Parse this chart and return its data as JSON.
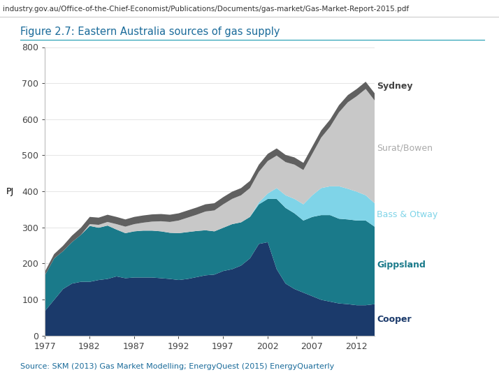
{
  "title": "Figure 2.7: Eastern Australia sources of gas supply",
  "source": "Source: SKM (2013) Gas Market Modelling; EnergyQuest (2015) EnergyQuarterly",
  "ylabel": "PJ",
  "url_text": "industry.gov.au/Office-of-the-Chief-Economist/Publications/Documents/gas-market/Gas-Market-Report-2015.pdf",
  "years": [
    1977,
    1978,
    1979,
    1980,
    1981,
    1982,
    1983,
    1984,
    1985,
    1986,
    1987,
    1988,
    1989,
    1990,
    1991,
    1992,
    1993,
    1994,
    1995,
    1996,
    1997,
    1998,
    1999,
    2000,
    2001,
    2002,
    2003,
    2004,
    2005,
    2006,
    2007,
    2008,
    2009,
    2010,
    2011,
    2012,
    2013,
    2014
  ],
  "cooper": [
    70,
    100,
    130,
    145,
    150,
    150,
    155,
    158,
    165,
    160,
    162,
    162,
    162,
    160,
    158,
    155,
    158,
    163,
    168,
    170,
    180,
    185,
    195,
    215,
    255,
    260,
    185,
    145,
    130,
    120,
    110,
    100,
    95,
    90,
    88,
    85,
    85,
    88
  ],
  "gippsland": [
    100,
    115,
    105,
    115,
    130,
    155,
    145,
    148,
    130,
    125,
    128,
    130,
    130,
    130,
    128,
    130,
    130,
    128,
    125,
    120,
    120,
    125,
    120,
    115,
    110,
    120,
    195,
    210,
    210,
    200,
    220,
    235,
    240,
    235,
    235,
    235,
    235,
    215
  ],
  "bass_otway": [
    0,
    0,
    0,
    0,
    0,
    0,
    0,
    0,
    0,
    0,
    0,
    0,
    0,
    0,
    0,
    0,
    0,
    0,
    0,
    0,
    0,
    0,
    0,
    0,
    5,
    15,
    30,
    35,
    40,
    45,
    60,
    75,
    80,
    90,
    85,
    80,
    70,
    65
  ],
  "surat_bowen": [
    0,
    0,
    0,
    0,
    0,
    5,
    8,
    10,
    15,
    18,
    20,
    22,
    25,
    28,
    30,
    35,
    40,
    45,
    52,
    58,
    65,
    70,
    75,
    80,
    85,
    90,
    90,
    92,
    95,
    95,
    115,
    140,
    165,
    205,
    240,
    265,
    295,
    285
  ],
  "sydney": [
    10,
    12,
    15,
    18,
    20,
    20,
    20,
    20,
    20,
    20,
    20,
    20,
    20,
    20,
    20,
    20,
    20,
    20,
    20,
    20,
    20,
    20,
    20,
    20,
    20,
    20,
    20,
    20,
    20,
    20,
    20,
    20,
    20,
    20,
    20,
    20,
    20,
    20
  ],
  "colors": {
    "cooper": "#1b3a6b",
    "gippsland": "#1a7a8a",
    "bass_otway": "#7fd4e8",
    "surat_bowen": "#c8c8c8",
    "sydney": "#606060"
  },
  "legend_labels": {
    "cooper": "Cooper",
    "gippsland": "Gippsland",
    "bass_otway": "Bass & Otway",
    "surat_bowen": "Surat/Bowen",
    "sydney": "Sydney"
  },
  "label_colors": {
    "cooper": "#1b3a6b",
    "gippsland": "#1a7a8a",
    "bass_otway": "#7fd4e8",
    "surat_bowen": "#aaaaaa",
    "sydney": "#444444"
  },
  "ylim": [
    0,
    800
  ],
  "background_color": "#ffffff",
  "title_color": "#1a6b9a",
  "source_color": "#1a6b9a"
}
